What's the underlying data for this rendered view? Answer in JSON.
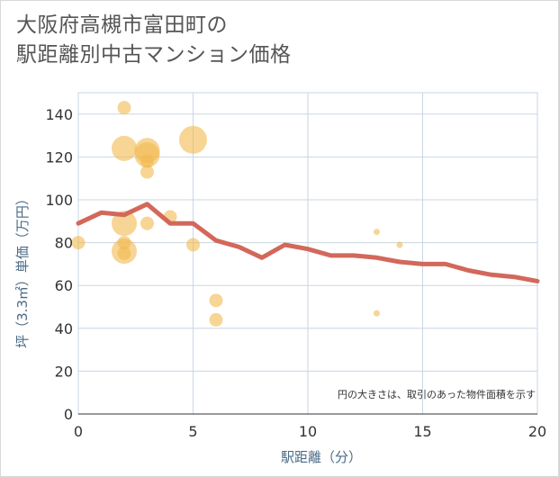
{
  "title_line1": "大阪府高槻市富田町の",
  "title_line2": "駅距離別中古マンション価格",
  "chart_data": {
    "type": "scatter",
    "title": "大阪府高槻市富田町の 駅距離別中古マンション価格",
    "xlabel": "駅距離（分）",
    "ylabel": "坪（3.3㎡）単価（万円）",
    "xlim": [
      0,
      20
    ],
    "ylim": [
      0,
      150
    ],
    "xticks": [
      "0",
      "5",
      "10",
      "15",
      "20"
    ],
    "yticks": [
      "0",
      "20",
      "40",
      "60",
      "80",
      "100",
      "120",
      "140"
    ],
    "grid": true,
    "note": "円の大きさは、取引のあった物件面積を示す",
    "colors": {
      "bubble": "#f1b94f",
      "line": "#d2685b",
      "grid": "#c9d6e3",
      "axis_text": "#4a6a85"
    },
    "bubbles": [
      {
        "x": 0,
        "y": 80,
        "size": "medium"
      },
      {
        "x": 2,
        "y": 143,
        "size": "medium"
      },
      {
        "x": 2,
        "y": 124,
        "size": "large"
      },
      {
        "x": 2,
        "y": 89,
        "size": "large"
      },
      {
        "x": 2,
        "y": 80,
        "size": "medium"
      },
      {
        "x": 2,
        "y": 76,
        "size": "large"
      },
      {
        "x": 2,
        "y": 75,
        "size": "medium"
      },
      {
        "x": 3,
        "y": 123,
        "size": "large"
      },
      {
        "x": 3,
        "y": 121,
        "size": "large"
      },
      {
        "x": 3,
        "y": 118,
        "size": "medium"
      },
      {
        "x": 3,
        "y": 113,
        "size": "medium"
      },
      {
        "x": 3,
        "y": 89,
        "size": "medium"
      },
      {
        "x": 4,
        "y": 92,
        "size": "medium"
      },
      {
        "x": 5,
        "y": 128,
        "size": "xlarge"
      },
      {
        "x": 5,
        "y": 79,
        "size": "medium"
      },
      {
        "x": 6,
        "y": 53,
        "size": "medium"
      },
      {
        "x": 6,
        "y": 44,
        "size": "medium"
      },
      {
        "x": 13,
        "y": 85,
        "size": "tiny"
      },
      {
        "x": 13,
        "y": 47,
        "size": "tiny"
      },
      {
        "x": 14,
        "y": 79,
        "size": "tiny"
      }
    ],
    "trend": {
      "x": [
        0,
        1,
        2,
        3,
        4,
        5,
        6,
        7,
        8,
        9,
        10,
        11,
        12,
        13,
        14,
        15,
        16,
        17,
        18,
        19,
        20
      ],
      "y": [
        89,
        94,
        93,
        98,
        89,
        89,
        81,
        78,
        73,
        79,
        77,
        74,
        74,
        73,
        71,
        70,
        70,
        67,
        65,
        64,
        62
      ]
    }
  }
}
